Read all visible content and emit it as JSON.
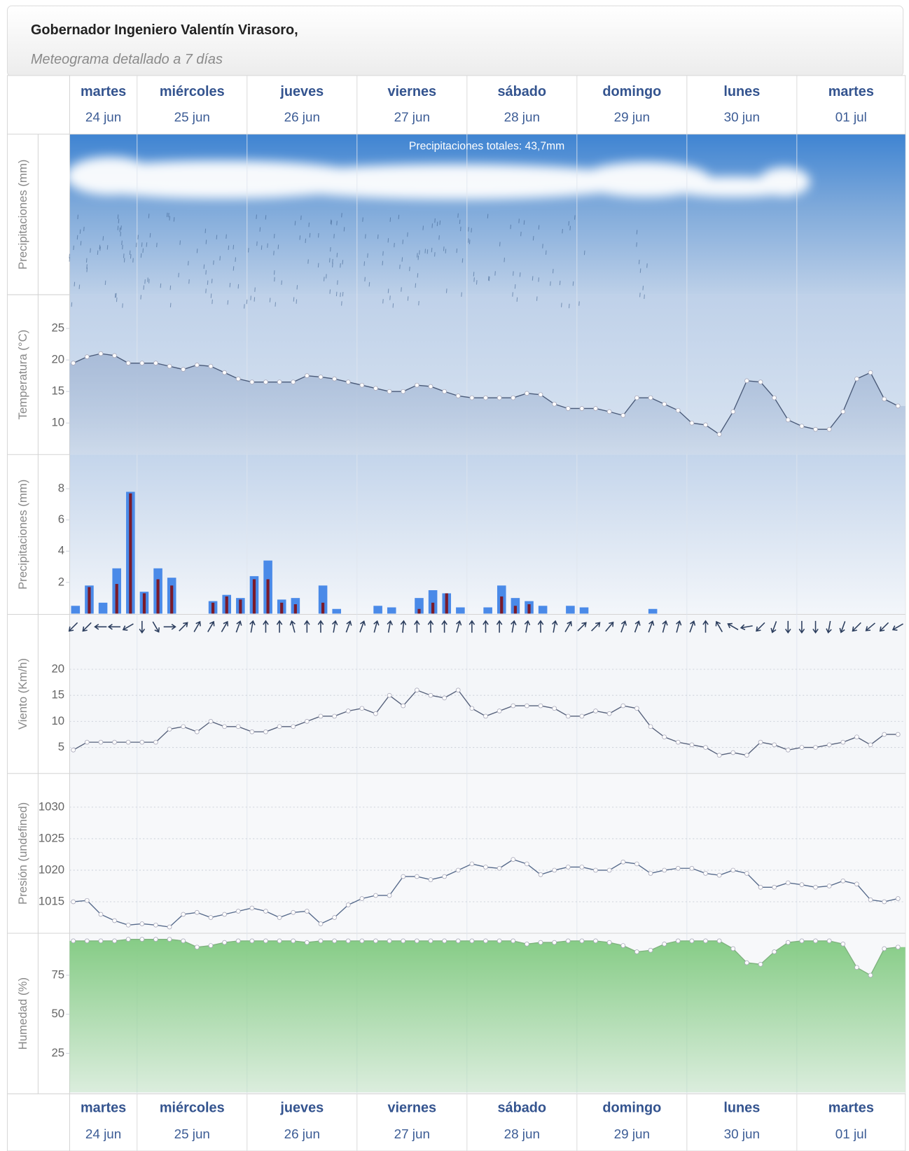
{
  "header": {
    "title": "Gobernador Ingeniero Valentín Virasoro,",
    "subtitle": "Meteograma detallado a 7 días"
  },
  "days": [
    {
      "name": "martes",
      "date": "24 jun"
    },
    {
      "name": "miércoles",
      "date": "25 jun"
    },
    {
      "name": "jueves",
      "date": "26 jun"
    },
    {
      "name": "viernes",
      "date": "27 jun"
    },
    {
      "name": "sábado",
      "date": "28 jun"
    },
    {
      "name": "domingo",
      "date": "29 jun"
    },
    {
      "name": "lunes",
      "date": "30 jun"
    },
    {
      "name": "martes",
      "date": "01 jul"
    }
  ],
  "chart_data": [
    {
      "type": "sky",
      "y_label": "Precipitaciones (mm)",
      "annotation": "Precipitaciones totales: 43,7mm"
    },
    {
      "type": "line",
      "y_label": "Temperatura (°C)",
      "ylim": [
        5,
        30
      ],
      "yticks": [
        10,
        15,
        20,
        25
      ],
      "grid": false,
      "area": true,
      "series": [
        {
          "color": "#4a5a78",
          "fill_color": "#a9bcd8",
          "values": [
            19.5,
            20.5,
            21,
            20.7,
            19.5,
            19.5,
            19.5,
            19,
            18.5,
            19.2,
            19,
            18,
            17,
            16.5,
            16.5,
            16.5,
            16.5,
            17.5,
            17.3,
            17,
            16.5,
            16,
            15.5,
            15,
            15,
            16,
            15.8,
            15,
            14.3,
            14,
            14,
            14,
            14,
            14.7,
            14.5,
            13,
            12.3,
            12.3,
            12.3,
            11.8,
            11.2,
            14,
            14,
            13,
            12,
            10,
            9.7,
            8.2,
            11.8,
            16.7,
            16.5,
            14,
            10.5,
            9.5,
            9,
            9,
            11.8,
            17,
            18,
            13.8,
            12.7
          ]
        }
      ]
    },
    {
      "type": "bar",
      "y_label": "Precipitaciones (mm)",
      "ylim": [
        0,
        10
      ],
      "yticks": [
        2,
        4,
        6,
        8
      ],
      "grid": false,
      "series": [
        {
          "color": "#4a8ae8",
          "values": [
            0.5,
            1.8,
            0.7,
            2.9,
            7.8,
            1.4,
            2.9,
            2.3,
            0,
            0,
            0.8,
            1.2,
            1.0,
            2.4,
            3.4,
            0.9,
            1.0,
            0,
            1.8,
            0.3,
            0,
            0,
            0.5,
            0.4,
            0,
            1.0,
            1.5,
            1.3,
            0.4,
            0,
            0.4,
            1.8,
            1.0,
            0.8,
            0.5,
            0,
            0.5,
            0.4,
            0,
            0,
            0,
            0,
            0.3,
            0,
            0,
            0,
            0,
            0,
            0,
            0,
            0,
            0,
            0,
            0,
            0,
            0,
            0,
            0,
            0,
            0,
            0
          ]
        },
        {
          "color": "#7a1a2a",
          "values": [
            0,
            1.7,
            0,
            1.9,
            7.7,
            1.3,
            2.2,
            1.8,
            0,
            0,
            0.7,
            1.1,
            0.9,
            2.2,
            2.2,
            0.7,
            0.6,
            0,
            0.7,
            0,
            0,
            0,
            0,
            0,
            0,
            0.3,
            0.7,
            1.3,
            0,
            0,
            0,
            1.1,
            0.5,
            0.6,
            0,
            0,
            0,
            0,
            0,
            0,
            0,
            0,
            0,
            0,
            0,
            0,
            0,
            0,
            0,
            0,
            0,
            0,
            0,
            0,
            0,
            0,
            0,
            0,
            0,
            0,
            0
          ]
        }
      ]
    },
    {
      "type": "line",
      "y_label": "Viento (Km/h)",
      "ylim": [
        0,
        30
      ],
      "yticks": [
        5,
        10,
        15,
        20
      ],
      "grid": true,
      "area": false,
      "series": [
        {
          "color": "#55607a",
          "values": [
            4.5,
            6,
            6,
            6,
            6,
            6,
            6,
            8.5,
            9,
            8,
            10,
            9,
            9,
            8,
            8,
            9,
            9,
            10,
            11,
            11,
            12,
            12.5,
            11.5,
            15,
            13,
            16,
            15,
            14.5,
            16,
            12.5,
            11,
            12,
            13,
            13,
            13,
            12.5,
            11,
            11,
            12,
            11.5,
            13,
            12.5,
            9,
            7,
            6,
            5.5,
            5,
            3.5,
            4,
            3.5,
            6,
            5.5,
            4.5,
            5,
            5,
            5.5,
            6,
            7,
            5.5,
            7.5,
            7.5
          ]
        }
      ],
      "directions": [
        225,
        225,
        270,
        270,
        240,
        180,
        150,
        90,
        45,
        30,
        30,
        30,
        20,
        10,
        0,
        0,
        345,
        0,
        0,
        10,
        20,
        20,
        15,
        10,
        5,
        0,
        0,
        0,
        15,
        0,
        0,
        0,
        10,
        10,
        0,
        10,
        30,
        45,
        45,
        40,
        20,
        20,
        20,
        15,
        15,
        20,
        0,
        330,
        300,
        260,
        225,
        200,
        180,
        180,
        180,
        190,
        200,
        225,
        230,
        225,
        240
      ]
    },
    {
      "type": "line",
      "y_label": "Presión (undefined)",
      "ylim": [
        1010,
        1035
      ],
      "yticks": [
        1015,
        1020,
        1025,
        1030
      ],
      "grid": true,
      "area": false,
      "series": [
        {
          "color": "#55698a",
          "values": [
            1015,
            1015.2,
            1013,
            1012,
            1011.3,
            1011.5,
            1011.3,
            1011,
            1013,
            1013.3,
            1012.5,
            1013,
            1013.5,
            1014,
            1013.5,
            1012.5,
            1013.3,
            1013.5,
            1011.5,
            1012.5,
            1014.5,
            1015.5,
            1016,
            1016,
            1019,
            1019,
            1018.5,
            1019,
            1020,
            1021,
            1020.5,
            1020.3,
            1021.7,
            1021,
            1019.3,
            1020,
            1020.5,
            1020.5,
            1020,
            1020,
            1021.3,
            1021,
            1019.5,
            1020,
            1020.3,
            1020.3,
            1019.5,
            1019.2,
            1020,
            1019.5,
            1017.3,
            1017.3,
            1018,
            1017.7,
            1017.3,
            1017.5,
            1018.3,
            1017.8,
            1015.3,
            1015,
            1015.5
          ]
        }
      ]
    },
    {
      "type": "line",
      "y_label": "Humedad (%)",
      "ylim": [
        0,
        100
      ],
      "yticks": [
        25,
        50,
        75
      ],
      "grid": false,
      "area": true,
      "series": [
        {
          "color": "#7fb27f",
          "fill_color": "#86cc86",
          "values": [
            97,
            97,
            97,
            97,
            98,
            98,
            98,
            98,
            97,
            93,
            94,
            96,
            97,
            97,
            97,
            97,
            97,
            96,
            97,
            97,
            97,
            97,
            97,
            97,
            97,
            97,
            97,
            97,
            97,
            97,
            97,
            97,
            97,
            95,
            96,
            96,
            97,
            97,
            97,
            96,
            94,
            90,
            91,
            95,
            97,
            97,
            97,
            97,
            92,
            83,
            82,
            90,
            96,
            97,
            97,
            97,
            95,
            80,
            75,
            92,
            93
          ]
        }
      ]
    }
  ]
}
